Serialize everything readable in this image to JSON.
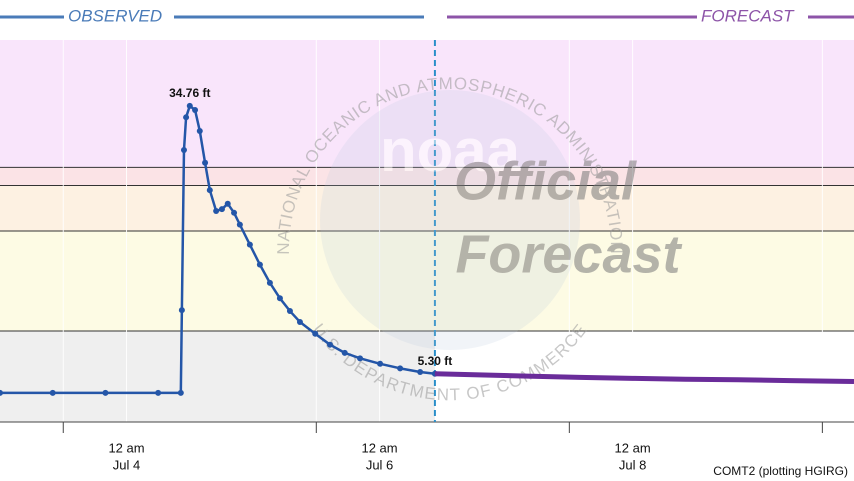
{
  "chart_data": {
    "type": "line",
    "header_left": "OBSERVED",
    "header_right": "FORECAST",
    "footer": "COMT2 (plotting HGIRG)",
    "watermark": {
      "logo": "noaa",
      "ring_top": "NATIONAL OCEANIC AND ATMOSPHERIC ADMINISTRATION",
      "ring_bottom": "U.S. DEPARTMENT OF COMMERCE",
      "line1": "Official",
      "line2": "Forecast"
    },
    "xlim": [
      0,
      162
    ],
    "ylim": [
      0,
      42
    ],
    "xticks": [
      {
        "value": 24,
        "label": "12 am",
        "date": "Jul 4"
      },
      {
        "value": 72,
        "label": "12 am",
        "date": "Jul 6"
      },
      {
        "value": 120,
        "label": "12 am",
        "date": "Jul 8"
      }
    ],
    "minor_xticks": [
      12,
      60,
      108,
      156
    ],
    "forecast_start": 82.5,
    "thresholds": [
      10,
      21,
      26,
      28
    ],
    "band_colors": [
      "#efefef",
      "#fdfbe4",
      "#fdf1e2",
      "#fbe3e6",
      "#f9e5fb"
    ],
    "grid": true,
    "series": [
      {
        "name": "Observed",
        "color": "#2456a8",
        "x": [
          0,
          10,
          20,
          30,
          34.3,
          34.5,
          34.9,
          35.3,
          36.0,
          37.0,
          37.9,
          38.9,
          39.8,
          41.0,
          42.1,
          43.2,
          44.4,
          45.5,
          47.4,
          49.3,
          51.2,
          53.1,
          55.0,
          56.9,
          59.8,
          62.6,
          65.4,
          68.3,
          72.1,
          75.9,
          79.7,
          82.5
        ],
        "values": [
          3.2,
          3.2,
          3.2,
          3.2,
          3.2,
          12.3,
          29.9,
          33.5,
          34.76,
          34.3,
          32,
          28.5,
          25.5,
          23.2,
          23.4,
          24.0,
          23.0,
          21.7,
          19.5,
          17.3,
          15.3,
          13.6,
          12.2,
          11.0,
          9.7,
          8.5,
          7.6,
          7.0,
          6.4,
          5.9,
          5.5,
          5.3
        ],
        "value_labels": [
          null,
          null,
          null,
          null,
          null,
          null,
          null,
          null,
          "34.76 ft",
          null,
          null,
          null,
          null,
          null,
          null,
          null,
          null,
          null,
          null,
          null,
          null,
          null,
          null,
          null,
          null,
          null,
          null,
          null,
          null,
          null,
          null,
          "5.30 ft"
        ]
      },
      {
        "name": "Forecast",
        "color": "#6a2c9a",
        "x": [
          82.5,
          90,
          100,
          110,
          120,
          130,
          140,
          150,
          162
        ],
        "values": [
          5.3,
          5.2,
          5.05,
          4.9,
          4.8,
          4.7,
          4.65,
          4.55,
          4.45
        ]
      }
    ]
  }
}
